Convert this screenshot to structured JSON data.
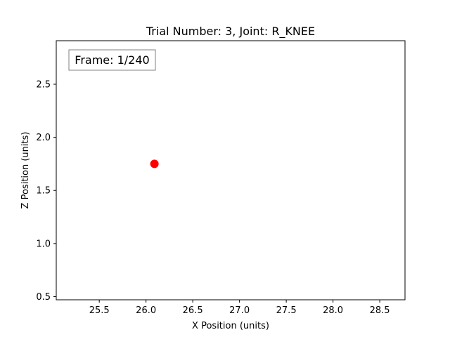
{
  "chart_data": {
    "type": "scatter",
    "title": "Trial Number: 3, Joint: R_KNEE",
    "xlabel": "X Position (units)",
    "ylabel": "Z Position (units)",
    "xlim": [
      25.04,
      28.77
    ],
    "ylim": [
      0.47,
      2.91
    ],
    "xticks": [
      25.5,
      26.0,
      26.5,
      27.0,
      27.5,
      28.0,
      28.5
    ],
    "xtick_labels": [
      "25.5",
      "26.0",
      "26.5",
      "27.0",
      "27.5",
      "28.0",
      "28.5"
    ],
    "yticks": [
      0.5,
      1.0,
      1.5,
      2.0,
      2.5
    ],
    "ytick_labels": [
      "0.5",
      "1.0",
      "1.5",
      "2.0",
      "2.5"
    ],
    "points": [
      {
        "x": 26.09,
        "y": 1.75
      }
    ],
    "marker_color": "#ff0000",
    "grid": false,
    "annotation": "Frame: 1/240"
  }
}
